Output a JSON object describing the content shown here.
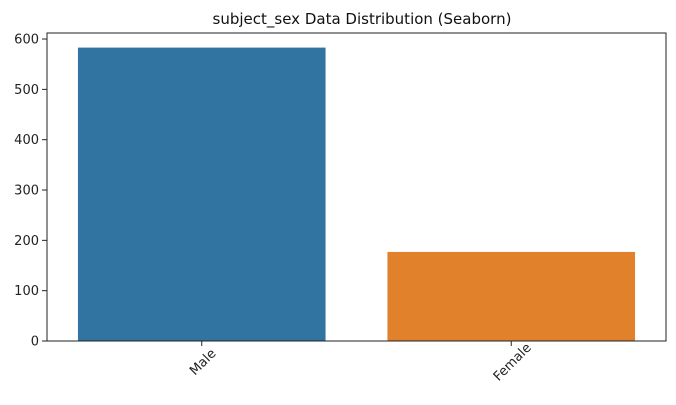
{
  "chart_data": {
    "type": "bar",
    "title": "subject_sex Data Distribution (Seaborn)",
    "xlabel": "",
    "ylabel": "",
    "categories": [
      "Male",
      "Female"
    ],
    "values": [
      583,
      177
    ],
    "colors": [
      "#3274a1",
      "#e1812c"
    ],
    "ylim": [
      0,
      612
    ],
    "yticks": [
      0,
      100,
      200,
      300,
      400,
      500,
      600
    ],
    "x_tick_rotation_deg": 45,
    "grid": false,
    "legend": "none"
  }
}
